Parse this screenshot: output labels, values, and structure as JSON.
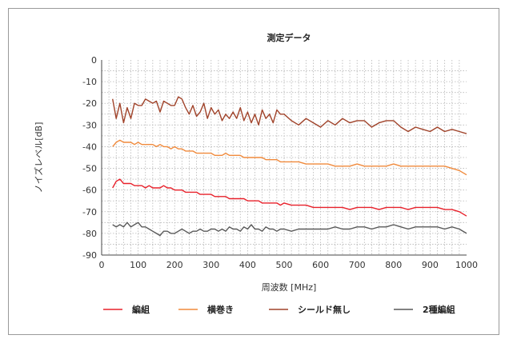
{
  "chart_data": {
    "type": "line",
    "title": "測定データ",
    "xlabel": "周波数 [MHz]",
    "ylabel": "ノイズレベル[dB]",
    "xlim": [
      0,
      1000
    ],
    "ylim": [
      -90,
      0
    ],
    "xticks": [
      "0",
      "100",
      "200",
      "300",
      "400",
      "500",
      "600",
      "700",
      "800",
      "900",
      "1000"
    ],
    "yticks": [
      "0",
      "-10",
      "-20",
      "-30",
      "-40",
      "-50",
      "-60",
      "-70",
      "-80",
      "-90"
    ],
    "grid": true,
    "legend_position": "bottom",
    "x": [
      30,
      40,
      50,
      60,
      70,
      80,
      90,
      100,
      110,
      120,
      130,
      140,
      150,
      160,
      170,
      180,
      190,
      200,
      210,
      220,
      230,
      240,
      250,
      260,
      270,
      280,
      290,
      300,
      310,
      320,
      330,
      340,
      350,
      360,
      370,
      380,
      390,
      400,
      410,
      420,
      430,
      440,
      450,
      460,
      470,
      480,
      490,
      500,
      520,
      540,
      560,
      580,
      600,
      620,
      640,
      660,
      680,
      700,
      720,
      740,
      760,
      780,
      800,
      820,
      840,
      860,
      880,
      900,
      920,
      940,
      960,
      980,
      1000
    ],
    "series": [
      {
        "name": "編組",
        "color": "#e8202a",
        "values": [
          -59,
          -56,
          -55,
          -57,
          -57,
          -57,
          -58,
          -58,
          -58,
          -59,
          -58,
          -59,
          -59,
          -59,
          -58,
          -59,
          -59,
          -60,
          -60,
          -60,
          -61,
          -61,
          -61,
          -61,
          -62,
          -62,
          -62,
          -62,
          -63,
          -63,
          -63,
          -63,
          -64,
          -64,
          -64,
          -64,
          -64,
          -65,
          -65,
          -65,
          -65,
          -66,
          -66,
          -66,
          -66,
          -66,
          -67,
          -66,
          -67,
          -67,
          -67,
          -68,
          -68,
          -68,
          -68,
          -68,
          -69,
          -68,
          -68,
          -68,
          -69,
          -68,
          -68,
          -68,
          -69,
          -68,
          -68,
          -68,
          -68,
          -69,
          -69,
          -70,
          -72
        ]
      },
      {
        "name": "横巻き",
        "color": "#f08a3c",
        "values": [
          -40,
          -38,
          -37,
          -38,
          -38,
          -38,
          -39,
          -38,
          -39,
          -39,
          -39,
          -39,
          -40,
          -39,
          -40,
          -40,
          -41,
          -40,
          -41,
          -41,
          -42,
          -42,
          -42,
          -43,
          -43,
          -43,
          -43,
          -43,
          -44,
          -44,
          -44,
          -43,
          -44,
          -44,
          -44,
          -44,
          -45,
          -45,
          -45,
          -45,
          -45,
          -45,
          -46,
          -46,
          -46,
          -46,
          -47,
          -47,
          -47,
          -47,
          -48,
          -48,
          -48,
          -48,
          -49,
          -49,
          -49,
          -48,
          -49,
          -49,
          -49,
          -49,
          -48,
          -49,
          -49,
          -49,
          -49,
          -49,
          -49,
          -49,
          -50,
          -51,
          -53
        ]
      },
      {
        "name": "シールド無し",
        "color": "#a0432a",
        "values": [
          -18,
          -27,
          -20,
          -29,
          -22,
          -27,
          -20,
          -21,
          -21,
          -18,
          -19,
          -20,
          -19,
          -24,
          -19,
          -20,
          -21,
          -21,
          -17,
          -18,
          -22,
          -25,
          -21,
          -26,
          -24,
          -20,
          -27,
          -22,
          -25,
          -23,
          -28,
          -25,
          -27,
          -24,
          -27,
          -22,
          -28,
          -24,
          -29,
          -25,
          -30,
          -23,
          -27,
          -25,
          -29,
          -23,
          -25,
          -25,
          -28,
          -30,
          -27,
          -29,
          -31,
          -28,
          -30,
          -27,
          -29,
          -28,
          -28,
          -31,
          -29,
          -28,
          -28,
          -31,
          -33,
          -31,
          -32,
          -33,
          -31,
          -33,
          -32,
          -33,
          -34
        ]
      },
      {
        "name": "2種編組",
        "color": "#595959",
        "values": [
          -76,
          -77,
          -76,
          -77,
          -75,
          -77,
          -76,
          -75,
          -77,
          -77,
          -78,
          -79,
          -80,
          -81,
          -79,
          -79,
          -80,
          -80,
          -79,
          -78,
          -79,
          -80,
          -79,
          -79,
          -78,
          -79,
          -79,
          -78,
          -78,
          -79,
          -78,
          -79,
          -77,
          -78,
          -78,
          -79,
          -77,
          -78,
          -76,
          -78,
          -78,
          -79,
          -77,
          -78,
          -78,
          -79,
          -78,
          -78,
          -79,
          -78,
          -78,
          -78,
          -78,
          -78,
          -77,
          -78,
          -78,
          -77,
          -77,
          -78,
          -77,
          -77,
          -76,
          -77,
          -78,
          -77,
          -77,
          -77,
          -77,
          -78,
          -77,
          -78,
          -80
        ]
      }
    ]
  }
}
